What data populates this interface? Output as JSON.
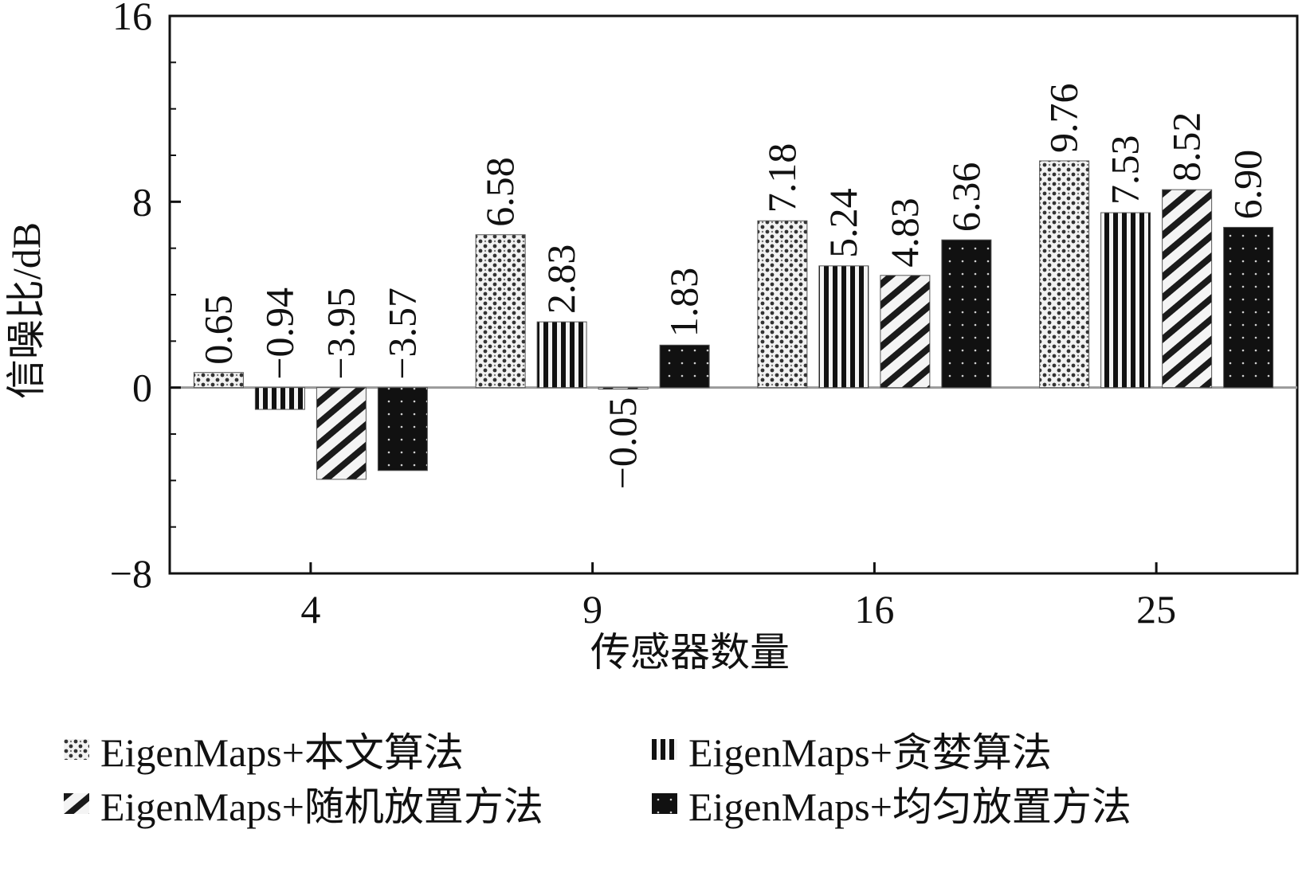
{
  "chart_data": {
    "type": "bar",
    "title": "",
    "xlabel": "传感器数量",
    "ylabel": "信噪比/dB",
    "categories": [
      "4",
      "9",
      "16",
      "25"
    ],
    "ylim": [
      -8,
      16
    ],
    "yticks": [
      "16",
      "8",
      "0",
      "−8"
    ],
    "grid": false,
    "legend_position": "bottom",
    "series": [
      {
        "name": "EigenMaps+本文算法",
        "pattern": "dots",
        "values": [
          0.65,
          6.58,
          7.18,
          9.76
        ],
        "labels": [
          "0.65",
          "6.58",
          "7.18",
          "9.76"
        ]
      },
      {
        "name": "EigenMaps+贪婪算法",
        "pattern": "vertical-stripes",
        "values": [
          -0.94,
          2.83,
          5.24,
          7.53
        ],
        "labels": [
          "−0.94",
          "2.83",
          "5.24",
          "7.53"
        ]
      },
      {
        "name": "EigenMaps+随机放置方法",
        "pattern": "diagonal-stripes",
        "values": [
          -3.95,
          -0.05,
          4.83,
          8.52
        ],
        "labels": [
          "−3.95",
          "−0.05",
          "4.83",
          "8.52"
        ]
      },
      {
        "name": "EigenMaps+均匀放置方法",
        "pattern": "dark-dots",
        "values": [
          -3.57,
          1.83,
          6.36,
          6.9
        ],
        "labels": [
          "−3.57",
          "1.83",
          "6.36",
          "6.90"
        ]
      }
    ]
  }
}
